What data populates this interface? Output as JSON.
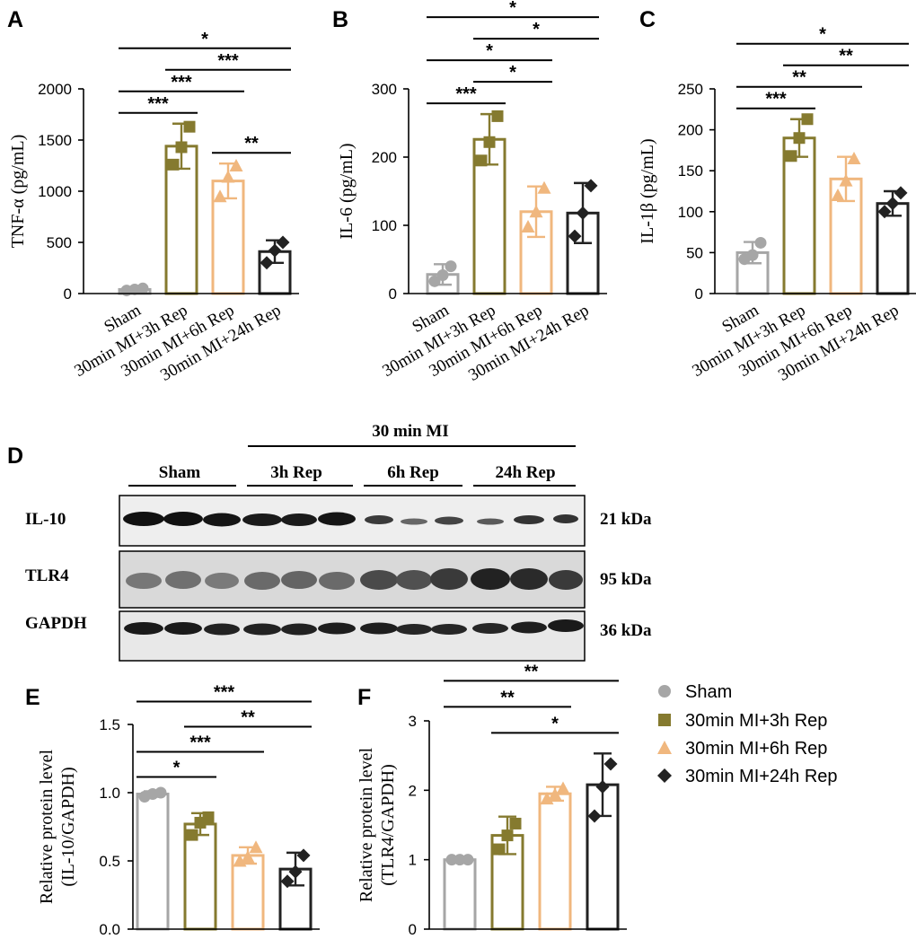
{
  "colors": {
    "sham": "#a6a6a6",
    "rep3h": "#857a2f",
    "rep6h": "#f0b77e",
    "rep24h": "#222222"
  },
  "legend": {
    "items": [
      {
        "label": "Sham",
        "marker": "circle",
        "color": "#a6a6a6"
      },
      {
        "label": "30min MI+3h Rep",
        "marker": "square",
        "color": "#857a2f"
      },
      {
        "label": "30min MI+6h Rep",
        "marker": "triangle",
        "color": "#f0b77e"
      },
      {
        "label": "30min MI+24h Rep",
        "marker": "diamond",
        "color": "#222222"
      }
    ]
  },
  "western_blot": {
    "letter": "D",
    "group_header": "30 min MI",
    "lane_groups": [
      "Sham",
      "3h Rep",
      "6h Rep",
      "24h Rep"
    ],
    "rows": [
      {
        "protein": "IL-10",
        "kda": "21 kDa"
      },
      {
        "protein": "TLR4",
        "kda": "95 kDa"
      },
      {
        "protein": "GAPDH",
        "kda": "36 kDa"
      }
    ]
  },
  "chart_data": [
    {
      "panel": "A",
      "type": "bar",
      "ylabel": "TNF-α (pg/mL)",
      "ylim": [
        0,
        2000
      ],
      "yticks": [
        "0",
        "500",
        "1000",
        "1500",
        "2000"
      ],
      "categories": [
        "Sham",
        "30min MI+3h Rep",
        "30min MI+6h Rep",
        "30min MI+24h Rep"
      ],
      "values": [
        40,
        1440,
        1100,
        410
      ],
      "sd": [
        15,
        220,
        170,
        110
      ],
      "points": [
        [
          30,
          40,
          50
        ],
        [
          1260,
          1430,
          1630
        ],
        [
          950,
          1140,
          1250
        ],
        [
          300,
          420,
          500
        ]
      ],
      "comparisons": [
        {
          "pair": [
            1,
            4
          ],
          "label": "*"
        },
        {
          "pair": [
            1,
            3
          ],
          "label": "***"
        },
        {
          "pair": [
            1,
            2
          ],
          "label": "***"
        },
        {
          "pair": [
            2,
            4
          ],
          "label": "***"
        },
        {
          "pair": [
            3,
            4
          ],
          "label": "**"
        }
      ]
    },
    {
      "panel": "B",
      "type": "bar",
      "ylabel": "IL-6 (pg/mL)",
      "ylim": [
        0,
        300
      ],
      "yticks": [
        "0",
        "100",
        "200",
        "300"
      ],
      "categories": [
        "Sham",
        "30min MI+3h Rep",
        "30min MI+6h Rep",
        "30min MI+24h Rep"
      ],
      "values": [
        28,
        226,
        120,
        118
      ],
      "sd": [
        15,
        37,
        37,
        44
      ],
      "points": [
        [
          18,
          27,
          40
        ],
        [
          195,
          222,
          260
        ],
        [
          98,
          120,
          155
        ],
        [
          84,
          118,
          158
        ]
      ],
      "comparisons": [
        {
          "pair": [
            1,
            4
          ],
          "label": "*"
        },
        {
          "pair": [
            1,
            3
          ],
          "label": "*"
        },
        {
          "pair": [
            2,
            4
          ],
          "label": "*"
        },
        {
          "pair": [
            1,
            2
          ],
          "label": "***"
        },
        {
          "pair": [
            2,
            3
          ],
          "label": "*"
        }
      ]
    },
    {
      "panel": "C",
      "type": "bar",
      "ylabel": "IL-1β (pg/mL)",
      "ylim": [
        0,
        250
      ],
      "yticks": [
        "0",
        "50",
        "100",
        "150",
        "200",
        "250"
      ],
      "categories": [
        "Sham",
        "30min MI+3h Rep",
        "30min MI+6h Rep",
        "30min MI+24h Rep"
      ],
      "values": [
        50,
        190,
        140,
        110
      ],
      "sd": [
        13,
        23,
        27,
        15
      ],
      "points": [
        [
          42,
          47,
          62
        ],
        [
          168,
          190,
          213
        ],
        [
          120,
          138,
          165
        ],
        [
          100,
          110,
          123
        ]
      ],
      "comparisons": [
        {
          "pair": [
            1,
            4
          ],
          "label": "*"
        },
        {
          "pair": [
            1,
            3
          ],
          "label": "**"
        },
        {
          "pair": [
            1,
            2
          ],
          "label": "***"
        },
        {
          "pair": [
            2,
            4
          ],
          "label": "**"
        }
      ]
    },
    {
      "panel": "E",
      "type": "bar",
      "ylabel": "Relative protein level (IL-10/GAPDH)",
      "ylim": [
        0,
        1.5
      ],
      "yticks": [
        "0.0",
        "0.5",
        "1.0",
        "1.5"
      ],
      "categories": [
        "Sham",
        "30min MI+3h Rep",
        "30min MI+6h Rep",
        "30min MI+24h Rep"
      ],
      "values": [
        0.99,
        0.77,
        0.54,
        0.44
      ],
      "sd": [
        0.02,
        0.08,
        0.06,
        0.12
      ],
      "points": [
        [
          0.97,
          0.99,
          1.0
        ],
        [
          0.69,
          0.78,
          0.82
        ],
        [
          0.5,
          0.53,
          0.6
        ],
        [
          0.35,
          0.42,
          0.54
        ]
      ],
      "comparisons": [
        {
          "pair": [
            1,
            4
          ],
          "label": "***"
        },
        {
          "pair": [
            1,
            3
          ],
          "label": "***"
        },
        {
          "pair": [
            1,
            2
          ],
          "label": "*"
        },
        {
          "pair": [
            2,
            4
          ],
          "label": "**"
        }
      ]
    },
    {
      "panel": "F",
      "type": "bar",
      "ylabel": "Relative protein level (TLR4/GAPDH)",
      "ylim": [
        0,
        3
      ],
      "yticks": [
        "0",
        "1",
        "2",
        "3"
      ],
      "categories": [
        "Sham",
        "30min MI+3h Rep",
        "30min MI+6h Rep",
        "30min MI+24h Rep"
      ],
      "values": [
        1.0,
        1.35,
        1.95,
        2.08
      ],
      "sd": [
        0.01,
        0.27,
        0.1,
        0.45
      ],
      "points": [
        [
          1.0,
          1.0,
          1.0
        ],
        [
          1.15,
          1.35,
          1.52
        ],
        [
          1.88,
          1.94,
          2.03
        ],
        [
          1.63,
          2.05,
          2.38
        ]
      ],
      "comparisons": [
        {
          "pair": [
            2,
            4
          ],
          "label": "*"
        },
        {
          "pair": [
            1,
            4
          ],
          "label": "**"
        },
        {
          "pair": [
            1,
            3
          ],
          "label": "**"
        }
      ]
    }
  ]
}
